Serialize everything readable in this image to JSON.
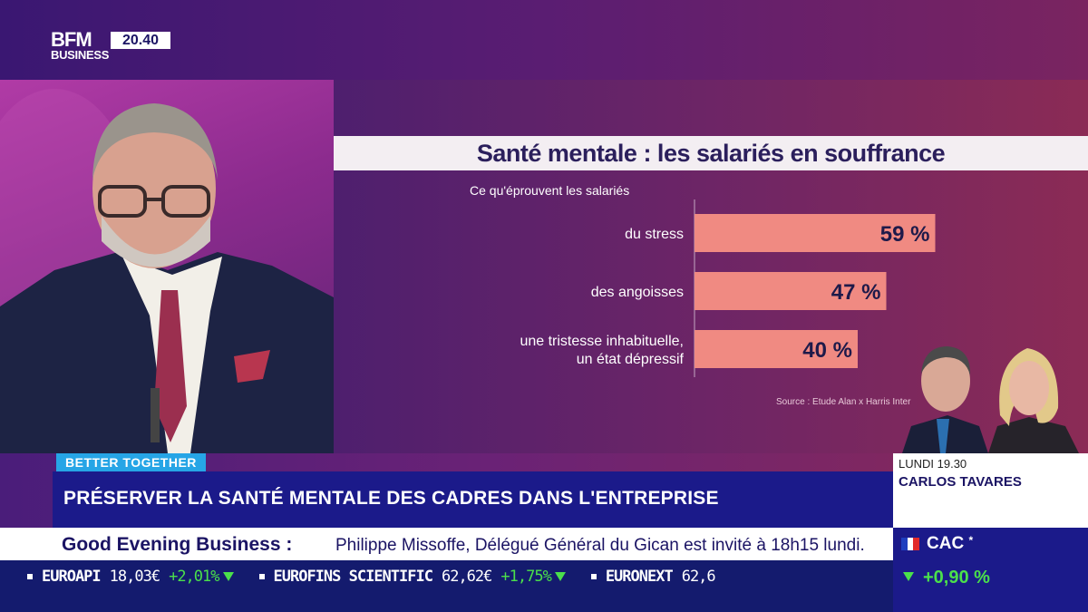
{
  "header": {
    "logo_top": "BFM",
    "logo_bottom": "BUSINESS",
    "clock": "20.40"
  },
  "chart_data": {
    "type": "bar",
    "orientation": "horizontal",
    "title": "Santé mentale : les salariés en souffrance",
    "subtitle": "Ce qu'éprouvent les salariés",
    "categories": [
      "du stress",
      "des angoisses",
      "une tristesse inhabituelle, un état dépressif"
    ],
    "category_lines": [
      [
        "du stress"
      ],
      [
        "des angoisses"
      ],
      [
        "une tristesse inhabituelle,",
        "un état dépressif"
      ]
    ],
    "values": [
      59,
      47,
      40
    ],
    "value_labels": [
      "59 %",
      "47 %",
      "40 %"
    ],
    "unit": "%",
    "xlim": [
      0,
      100
    ],
    "bar_color": "#f08a82",
    "source": "Source : Etude Alan x Harris Inter"
  },
  "guest": {
    "day_time": "LUNDI 19.30",
    "name": "CARLOS TAVARES"
  },
  "topic": {
    "tag": "BETTER TOGETHER",
    "headline": "PRÉSERVER LA SANTÉ MENTALE DES CADRES DANS L'ENTREPRISE"
  },
  "info_bar": {
    "show": "Good Evening Business :",
    "text": "Philippe Missoffe, Délégué Général du Gican est invité à 18h15 lundi."
  },
  "ticker": [
    {
      "name": "EUROAPI",
      "value": "18,03€",
      "change": "+2,01%"
    },
    {
      "name": "EUROFINS SCIENTIFIC",
      "value": "62,62€",
      "change": "+1,75%"
    },
    {
      "name": "EURONEXT",
      "value": "62,6"
    }
  ],
  "index": {
    "name": "CAC",
    "marker": "*",
    "change": "+0,90 %"
  },
  "colors": {
    "accent_blue": "#26a5e6",
    "band_navy": "#1b1a8a",
    "positive": "#4be04b",
    "title_text": "#2b1f5c"
  }
}
